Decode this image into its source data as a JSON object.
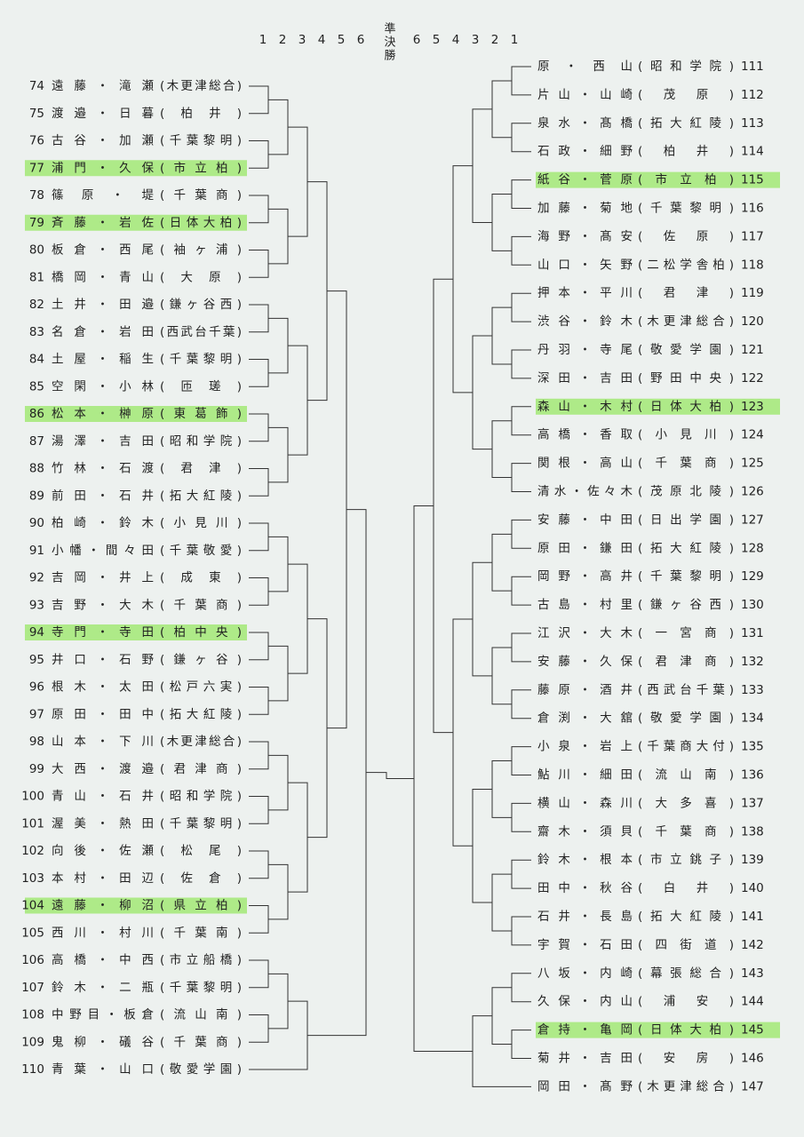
{
  "header": {
    "left_rounds": [
      1,
      2,
      3,
      4,
      5,
      6
    ],
    "final_label": "準決勝",
    "right_rounds": [
      6,
      5,
      4,
      3,
      2,
      1
    ]
  },
  "left": [
    {
      "no": 74,
      "names": "遠藤・滝瀬",
      "school": "(木更津総合)"
    },
    {
      "no": 75,
      "names": "渡邉・日暮",
      "school": "(柏井)"
    },
    {
      "no": 76,
      "names": "古谷・加瀬",
      "school": "(千葉黎明)"
    },
    {
      "no": 77,
      "names": "浦門・久保",
      "school": "(市立柏)",
      "highlight": true
    },
    {
      "no": 78,
      "names": "篠原・堤",
      "school": "(千葉商)"
    },
    {
      "no": 79,
      "names": "斉藤・岩佐",
      "school": "(日体大柏)",
      "highlight": true
    },
    {
      "no": 80,
      "names": "板倉・西尾",
      "school": "(袖ヶ浦)"
    },
    {
      "no": 81,
      "names": "橋岡・青山",
      "school": "(大原)"
    },
    {
      "no": 82,
      "names": "土井・田邉",
      "school": "(鎌ヶ谷西)"
    },
    {
      "no": 83,
      "names": "名倉・岩田",
      "school": "(西武台千葉)"
    },
    {
      "no": 84,
      "names": "土屋・稲生",
      "school": "(千葉黎明)"
    },
    {
      "no": 85,
      "names": "空閑・小林",
      "school": "(匝瑳)"
    },
    {
      "no": 86,
      "names": "松本・榊原",
      "school": "(東葛飾)",
      "highlight": true
    },
    {
      "no": 87,
      "names": "湯澤・吉田",
      "school": "(昭和学院)"
    },
    {
      "no": 88,
      "names": "竹林・石渡",
      "school": "(君津)"
    },
    {
      "no": 89,
      "names": "前田・石井",
      "school": "(拓大紅陵)"
    },
    {
      "no": 90,
      "names": "柏崎・鈴木",
      "school": "(小見川)"
    },
    {
      "no": 91,
      "names": "小幡・間々田",
      "school": "(千葉敬愛)"
    },
    {
      "no": 92,
      "names": "吉岡・井上",
      "school": "(成東)"
    },
    {
      "no": 93,
      "names": "吉野・大木",
      "school": "(千葉商)"
    },
    {
      "no": 94,
      "names": "寺門・寺田",
      "school": "(柏中央)",
      "highlight": true
    },
    {
      "no": 95,
      "names": "井口・石野",
      "school": "(鎌ヶ谷)"
    },
    {
      "no": 96,
      "names": "根木・太田",
      "school": "(松戸六実)"
    },
    {
      "no": 97,
      "names": "原田・田中",
      "school": "(拓大紅陵)"
    },
    {
      "no": 98,
      "names": "山本・下川",
      "school": "(木更津総合)"
    },
    {
      "no": 99,
      "names": "大西・渡邉",
      "school": "(君津商)"
    },
    {
      "no": 100,
      "names": "青山・石井",
      "school": "(昭和学院)"
    },
    {
      "no": 101,
      "names": "渥美・熱田",
      "school": "(千葉黎明)"
    },
    {
      "no": 102,
      "names": "向後・佐瀬",
      "school": "(松尾)"
    },
    {
      "no": 103,
      "names": "本村・田辺",
      "school": "(佐倉)"
    },
    {
      "no": 104,
      "names": "遠藤・柳沼",
      "school": "(県立柏)",
      "highlight": true
    },
    {
      "no": 105,
      "names": "西川・村川",
      "school": "(千葉南)"
    },
    {
      "no": 106,
      "names": "高橋・中西",
      "school": "(市立船橋)"
    },
    {
      "no": 107,
      "names": "鈴木・二瓶",
      "school": "(千葉黎明)"
    },
    {
      "no": 108,
      "names": "中野目・板倉",
      "school": "(流山南)"
    },
    {
      "no": 109,
      "names": "鬼柳・礒谷",
      "school": "(千葉商)"
    },
    {
      "no": 110,
      "names": "青葉・山口",
      "school": "(敬愛学園)"
    }
  ],
  "right": [
    {
      "no": 111,
      "names": "原・西山",
      "school": "(昭和学院)"
    },
    {
      "no": 112,
      "names": "片山・山崎",
      "school": "(茂原)"
    },
    {
      "no": 113,
      "names": "泉水・髙橋",
      "school": "(拓大紅陵)"
    },
    {
      "no": 114,
      "names": "石政・細野",
      "school": "(柏井)"
    },
    {
      "no": 115,
      "names": "紙谷・菅原",
      "school": "(市立柏)",
      "highlight": true
    },
    {
      "no": 116,
      "names": "加藤・菊地",
      "school": "(千葉黎明)"
    },
    {
      "no": 117,
      "names": "海野・髙安",
      "school": "(佐原)"
    },
    {
      "no": 118,
      "names": "山口・矢野",
      "school": "(二松学舎柏)"
    },
    {
      "no": 119,
      "names": "押本・平川",
      "school": "(君津)"
    },
    {
      "no": 120,
      "names": "渋谷・鈴木",
      "school": "(木更津総合)"
    },
    {
      "no": 121,
      "names": "丹羽・寺尾",
      "school": "(敬愛学園)"
    },
    {
      "no": 122,
      "names": "深田・吉田",
      "school": "(野田中央)"
    },
    {
      "no": 123,
      "names": "森山・木村",
      "school": "(日体大柏)",
      "highlight": true
    },
    {
      "no": 124,
      "names": "高橋・香取",
      "school": "(小見川)"
    },
    {
      "no": 125,
      "names": "関根・高山",
      "school": "(千葉商)"
    },
    {
      "no": 126,
      "names": "清水・佐々木",
      "school": "(茂原北陵)"
    },
    {
      "no": 127,
      "names": "安藤・中田",
      "school": "(日出学園)"
    },
    {
      "no": 128,
      "names": "原田・鎌田",
      "school": "(拓大紅陵)"
    },
    {
      "no": 129,
      "names": "岡野・高井",
      "school": "(千葉黎明)"
    },
    {
      "no": 130,
      "names": "古島・村里",
      "school": "(鎌ヶ谷西)"
    },
    {
      "no": 131,
      "names": "江沢・大木",
      "school": "(一宮商)"
    },
    {
      "no": 132,
      "names": "安藤・久保",
      "school": "(君津商)"
    },
    {
      "no": 133,
      "names": "藤原・酒井",
      "school": "(西武台千葉)"
    },
    {
      "no": 134,
      "names": "倉渕・大舘",
      "school": "(敬愛学園)"
    },
    {
      "no": 135,
      "names": "小泉・岩上",
      "school": "(千葉商大付)"
    },
    {
      "no": 136,
      "names": "鮎川・細田",
      "school": "(流山南)"
    },
    {
      "no": 137,
      "names": "横山・森川",
      "school": "(大多喜)"
    },
    {
      "no": 138,
      "names": "齋木・須貝",
      "school": "(千葉商)"
    },
    {
      "no": 139,
      "names": "鈴木・根本",
      "school": "(市立銚子)"
    },
    {
      "no": 140,
      "names": "田中・秋谷",
      "school": "(白井)"
    },
    {
      "no": 141,
      "names": "石井・長島",
      "school": "(拓大紅陵)"
    },
    {
      "no": 142,
      "names": "宇賀・石田",
      "school": "(四街道)"
    },
    {
      "no": 143,
      "names": "八坂・内崎",
      "school": "(幕張総合)"
    },
    {
      "no": 144,
      "names": "久保・内山",
      "school": "(浦安)"
    },
    {
      "no": 145,
      "names": "倉持・亀岡",
      "school": "(日体大柏)",
      "highlight": true
    },
    {
      "no": 146,
      "names": "菊井・吉田",
      "school": "(安房)"
    },
    {
      "no": 147,
      "names": "岡田・髙野",
      "school": "(木更津総合)"
    }
  ]
}
